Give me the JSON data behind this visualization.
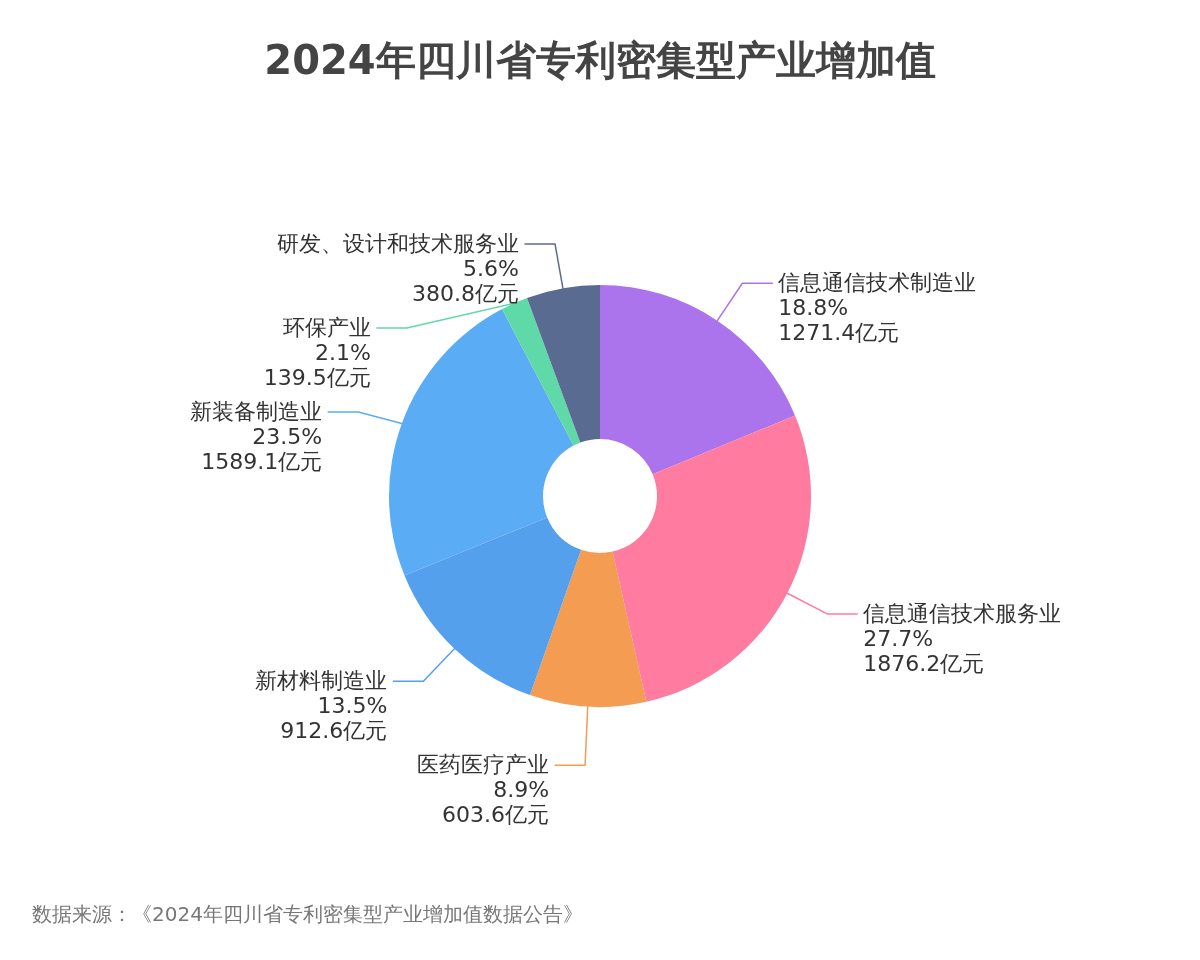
{
  "chart_data": {
    "type": "donut",
    "title": "2024年四川省专利密集型产业增加值",
    "categories": [
      "信息通信技术制造业",
      "信息通信技术服务业",
      "医药医疗产业",
      "新材料制造业",
      "新装备制造业",
      "环保产业",
      "研发、设计和技术服务业"
    ],
    "values": [
      1271.4,
      1876.2,
      603.6,
      912.6,
      1589.1,
      139.5,
      380.8
    ],
    "colors": [
      "#ab74ec",
      "#ff7ba0",
      "#f39c52",
      "#55a0ec",
      "#5aacf5",
      "#5fd9a8",
      "#5a6b92"
    ],
    "value_labels": [
      "18.8%\n1271.4亿元",
      "27.7%\n1876.2亿元",
      "8.9%\n603.6亿元",
      "13.5%\n912.6亿元",
      "23.5%\n1589.1亿元",
      "2.1%\n139.5亿元",
      "5.6%\n380.8亿元"
    ],
    "annotations": [
      "数据来源：《2024年四川省专利密集型产业增加值数据公告》"
    ]
  }
}
